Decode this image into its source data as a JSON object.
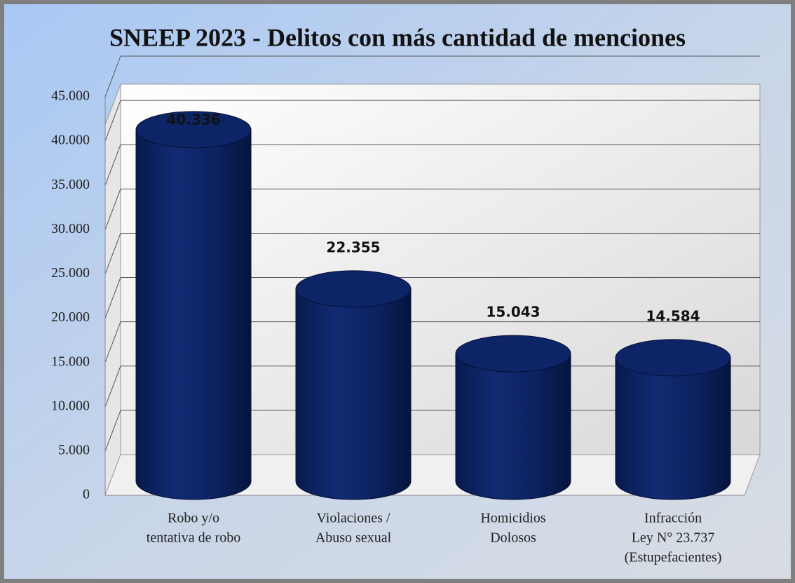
{
  "chart_data": {
    "type": "cylinder-bar",
    "title": "SNEEP 2023 - Delitos con más cantidad de menciones",
    "categories": [
      [
        "Robo y/o",
        "tentativa de robo"
      ],
      [
        "Violaciones /",
        "Abuso sexual"
      ],
      [
        "Homicidios",
        "Dolosos"
      ],
      [
        "Infracción",
        "Ley N° 23.737",
        "(Estupefacientes)"
      ]
    ],
    "values": [
      40336,
      22355,
      15043,
      14584
    ],
    "value_labels": [
      "40.336",
      "22.355",
      "15.043",
      "14.584"
    ],
    "color": "#0d2466",
    "ylim": [
      0,
      45000
    ],
    "yticks": [
      0,
      {
        "value": 5000,
        "label": "5.000"
      },
      {
        "value": 10000,
        "label": "10.000"
      },
      {
        "value": 15000,
        "label": "15.000"
      },
      {
        "value": 20000,
        "label": "20.000"
      },
      {
        "value": 25000,
        "label": "25.000"
      },
      {
        "value": 30000,
        "label": "30.000"
      },
      {
        "value": 35000,
        "label": "35.000"
      },
      {
        "value": 40000,
        "label": "40.000"
      },
      {
        "value": 45000,
        "label": "45.000"
      }
    ],
    "grid": true
  }
}
